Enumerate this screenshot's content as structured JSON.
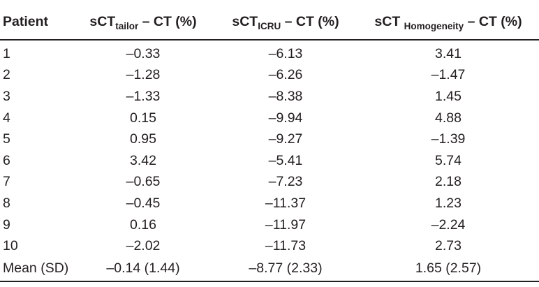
{
  "table": {
    "headers": [
      {
        "main": "Patient",
        "sub": "",
        "tail": ""
      },
      {
        "main": "sCT",
        "sub": "tailor",
        "tail": " – CT (%)"
      },
      {
        "main": "sCT",
        "sub": "ICRU",
        "tail": " – CT (%)"
      },
      {
        "main": "sCT ",
        "sub": "Homogeneity",
        "tail": " – CT (%)"
      }
    ],
    "rows": [
      [
        "1",
        "–0.33",
        "–6.13",
        "3.41"
      ],
      [
        "2",
        "–1.28",
        "–6.26",
        "–1.47"
      ],
      [
        "3",
        "–1.33",
        "–8.38",
        "1.45"
      ],
      [
        "4",
        "0.15",
        "–9.94",
        "4.88"
      ],
      [
        "5",
        "0.95",
        "–9.27",
        "–1.39"
      ],
      [
        "6",
        "3.42",
        "–5.41",
        "5.74"
      ],
      [
        "7",
        "–0.65",
        "–7.23",
        "2.18"
      ],
      [
        "8",
        "–0.45",
        "–11.37",
        "1.23"
      ],
      [
        "9",
        "0.16",
        "–11.97",
        "–2.24"
      ],
      [
        "10",
        "–2.02",
        "–11.73",
        "2.73"
      ],
      [
        "Mean (SD)",
        "–0.14 (1.44)",
        "–8.77 (2.33)",
        "1.65 (2.57)"
      ]
    ]
  }
}
